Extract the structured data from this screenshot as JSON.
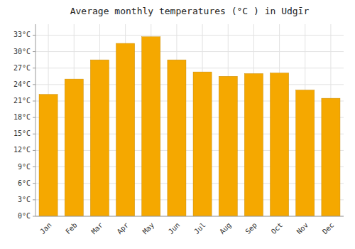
{
  "chart_data": {
    "type": "bar",
    "title": "Average monthly temperatures (°C ) in Udgīr",
    "categories": [
      "Jan",
      "Feb",
      "Mar",
      "Apr",
      "May",
      "Jun",
      "Jul",
      "Aug",
      "Sep",
      "Oct",
      "Nov",
      "Dec"
    ],
    "values": [
      22.2,
      25.0,
      28.5,
      31.5,
      32.7,
      28.5,
      26.3,
      25.5,
      26.0,
      26.1,
      23.0,
      21.5
    ],
    "color": "#F5A800",
    "ylim": [
      0,
      35
    ],
    "yticks": [
      {
        "value": 0,
        "label": "0°C"
      },
      {
        "value": 3,
        "label": "3°C"
      },
      {
        "value": 6,
        "label": "6°C"
      },
      {
        "value": 9,
        "label": "9°C"
      },
      {
        "value": 12,
        "label": "12°C"
      },
      {
        "value": 15,
        "label": "15°C"
      },
      {
        "value": 18,
        "label": "18°C"
      },
      {
        "value": 21,
        "label": "21°C"
      },
      {
        "value": 24,
        "label": "24°C"
      },
      {
        "value": 27,
        "label": "27°C"
      },
      {
        "value": 30,
        "label": "30°C"
      },
      {
        "value": 33,
        "label": "33°C"
      }
    ],
    "grid": true
  }
}
